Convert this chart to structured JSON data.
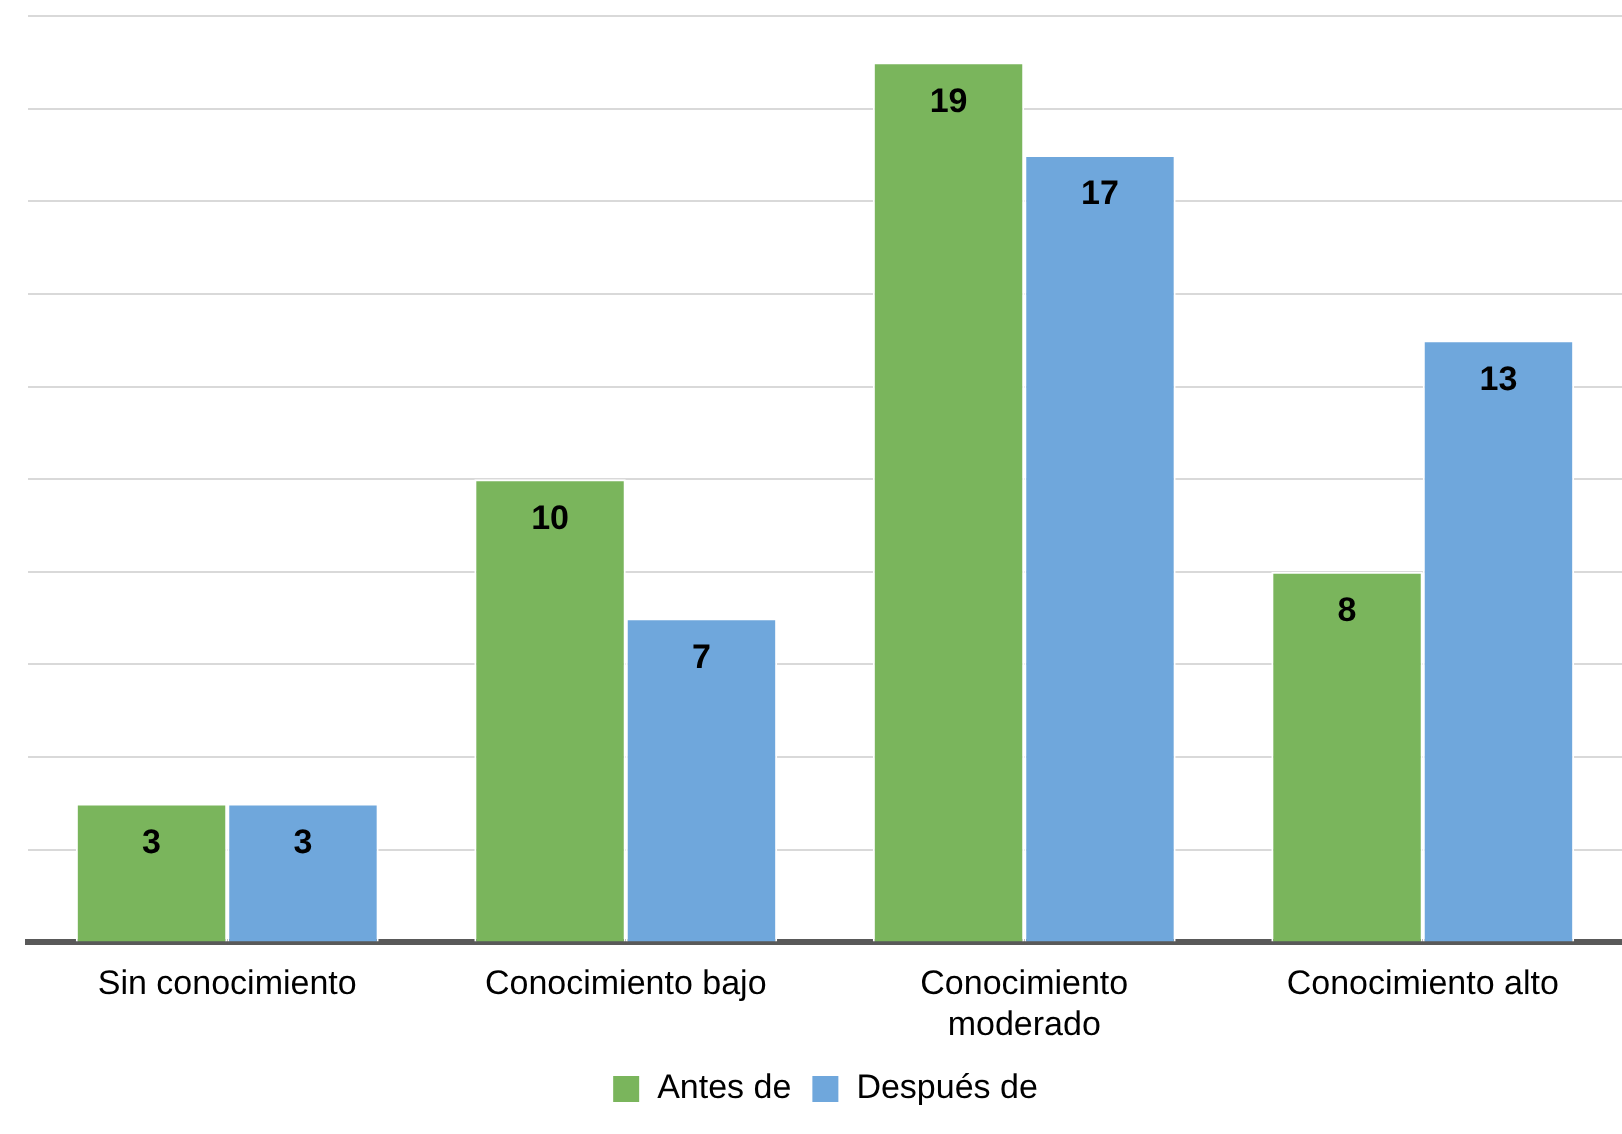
{
  "chart_data": {
    "type": "bar",
    "categories": [
      "Sin conocimiento",
      "Conocimiento bajo",
      "Conocimiento moderado",
      "Conocimiento alto"
    ],
    "series": [
      {
        "name": "Antes de",
        "color": "#7ab55c",
        "values": [
          3,
          10,
          19,
          8
        ]
      },
      {
        "name": "Después de",
        "color": "#6fa7dc",
        "values": [
          3,
          7,
          17,
          13
        ]
      }
    ],
    "ylim": [
      0,
      20
    ],
    "yticks": [
      {
        "value": 0,
        "label": null
      },
      {
        "value": 2,
        "label": null
      },
      {
        "value": 4,
        "label": null
      },
      {
        "value": 6,
        "label": null
      },
      {
        "value": 8,
        "label": null
      },
      {
        "value": 10,
        "label": null
      },
      {
        "value": 12,
        "label": null
      },
      {
        "value": 14,
        "label": null
      },
      {
        "value": 16,
        "label": null
      },
      {
        "value": 18,
        "label": null
      },
      {
        "value": 20,
        "label": null
      }
    ],
    "grid": "y",
    "tick_labels": "x",
    "legend": "bottom",
    "data_labels": true
  }
}
